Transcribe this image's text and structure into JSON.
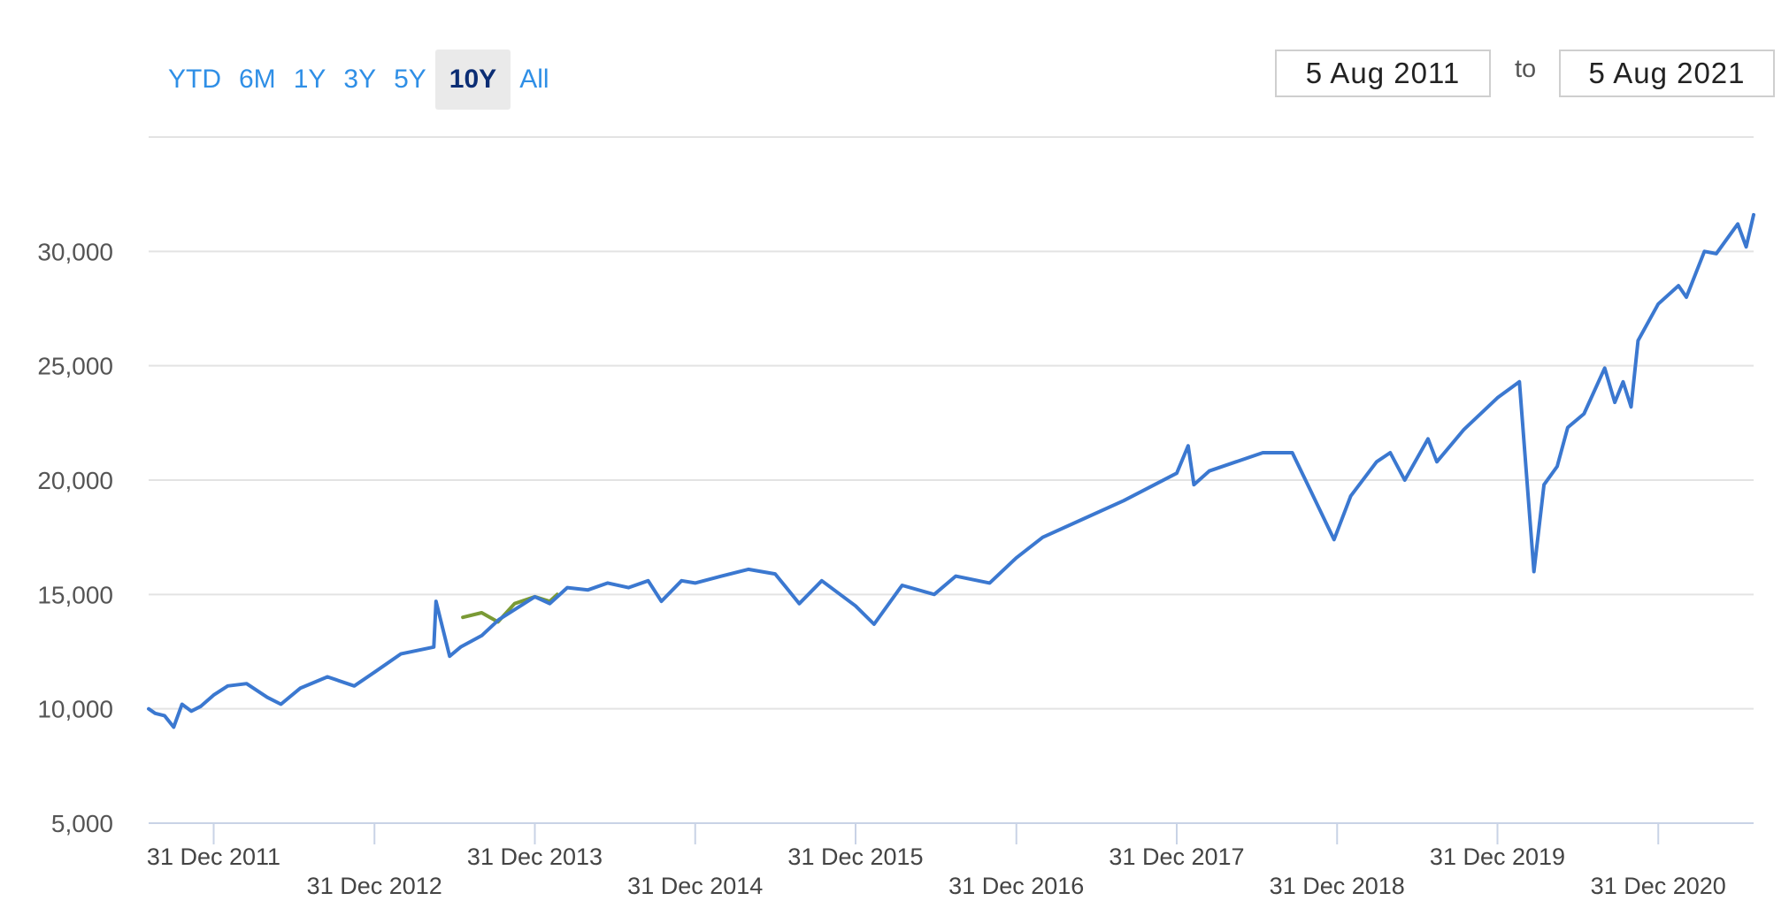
{
  "range_selector": {
    "buttons": [
      "YTD",
      "6M",
      "1Y",
      "3Y",
      "5Y",
      "10Y",
      "All"
    ],
    "selected": "10Y"
  },
  "date_range": {
    "from": "5 Aug 2011",
    "to_label": "to",
    "to": "5 Aug 2021"
  },
  "colors": {
    "series_main": "#3b78d0",
    "series_secondary": "#7a9a35",
    "grid": "#e3e3e3",
    "axis": "#c9d3e6",
    "button_text": "#2f8fe6",
    "button_selected_text": "#0b2d74"
  },
  "chart_data": {
    "type": "line",
    "title": "",
    "xlabel": "",
    "ylabel": "",
    "ylim": [
      5000,
      35000
    ],
    "y_ticks": [
      5000,
      10000,
      15000,
      20000,
      25000,
      30000
    ],
    "y_tick_labels": [
      "5,000",
      "10,000",
      "15,000",
      "20,000",
      "25,000",
      "30,000"
    ],
    "x_tick_labels": [
      "31 Dec 2011",
      "31 Dec 2012",
      "31 Dec 2013",
      "31 Dec 2014",
      "31 Dec 2015",
      "31 Dec 2016",
      "31 Dec 2017",
      "31 Dec 2018",
      "31 Dec 2019",
      "31 Dec 2020"
    ],
    "x_range": [
      "2011-08-05",
      "2021-08-05"
    ],
    "grid": true,
    "series": [
      {
        "x": [
          "2011-08-05",
          "2011-08-20",
          "2011-09-10",
          "2011-10-01",
          "2011-10-20",
          "2011-11-10",
          "2011-12-01",
          "2011-12-31",
          "2012-02-01",
          "2012-03-15",
          "2012-05-01",
          "2012-06-01",
          "2012-07-15",
          "2012-09-15",
          "2012-11-15",
          "2012-12-31",
          "2013-03-01",
          "2013-05-15",
          "2013-05-20",
          "2013-06-20",
          "2013-07-15",
          "2013-09-01",
          "2013-10-10",
          "2013-12-31",
          "2014-02-03",
          "2014-03-15",
          "2014-05-01",
          "2014-06-15",
          "2014-08-01",
          "2014-09-15",
          "2014-10-15",
          "2014-11-30",
          "2014-12-31",
          "2015-03-01",
          "2015-05-01",
          "2015-07-01",
          "2015-08-25",
          "2015-10-15",
          "2015-12-31",
          "2016-02-11",
          "2016-04-15",
          "2016-06-27",
          "2016-08-15",
          "2016-10-31",
          "2016-12-31",
          "2017-03-01",
          "2017-06-01",
          "2017-09-01",
          "2017-12-31",
          "2018-01-26",
          "2018-02-08",
          "2018-03-15",
          "2018-05-15",
          "2018-07-15",
          "2018-09-20",
          "2018-10-30",
          "2018-12-24",
          "2019-01-31",
          "2019-03-31",
          "2019-05-01",
          "2019-06-03",
          "2019-07-26",
          "2019-08-15",
          "2019-10-15",
          "2019-12-31",
          "2020-02-19",
          "2020-03-23",
          "2020-04-15",
          "2020-05-15",
          "2020-06-08",
          "2020-07-15",
          "2020-08-31",
          "2020-09-23",
          "2020-10-12",
          "2020-10-30",
          "2020-11-15",
          "2020-12-31",
          "2021-02-15",
          "2021-03-05",
          "2021-04-15",
          "2021-05-12",
          "2021-06-30",
          "2021-07-19",
          "2021-08-05"
        ],
        "values": [
          10000,
          9800,
          9700,
          9200,
          10200,
          9900,
          10100,
          10600,
          11000,
          11100,
          10500,
          10200,
          10900,
          11400,
          11000,
          11600,
          12400,
          12700,
          14700,
          12300,
          12700,
          13200,
          13900,
          14900,
          14600,
          15300,
          15200,
          15500,
          15300,
          15600,
          14700,
          15600,
          15500,
          15800,
          16100,
          15900,
          14600,
          15600,
          14500,
          13700,
          15400,
          15000,
          15800,
          15500,
          16600,
          17500,
          18300,
          19100,
          20300,
          21500,
          19800,
          20400,
          20800,
          21200,
          21200,
          19600,
          17400,
          19300,
          20800,
          21200,
          20000,
          21800,
          20800,
          22200,
          23600,
          24300,
          16000,
          19800,
          20600,
          22300,
          22900,
          24900,
          23400,
          24300,
          23200,
          26100,
          27700,
          28500,
          28000,
          30000,
          29900,
          31200,
          30200,
          31600
        ]
      },
      {
        "x": [
          "2013-07-20",
          "2013-09-01",
          "2013-10-08",
          "2013-11-15",
          "2013-12-31",
          "2014-02-03",
          "2014-02-20"
        ],
        "values": [
          14000,
          14200,
          13800,
          14600,
          14900,
          14700,
          15000
        ]
      }
    ]
  }
}
